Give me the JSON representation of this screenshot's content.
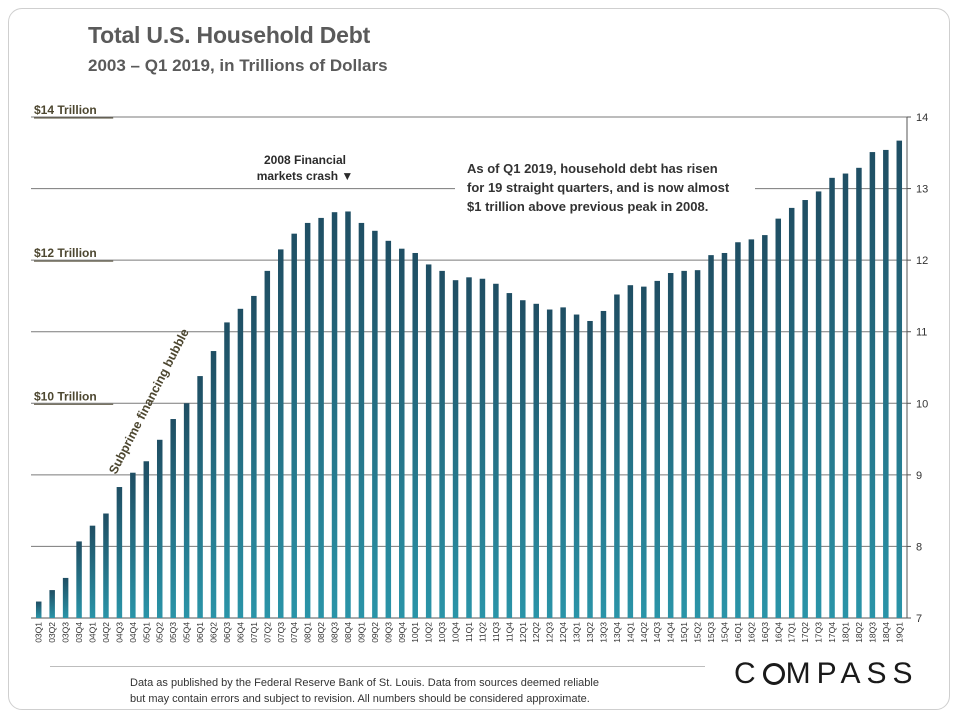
{
  "title": "Total U.S. Household Debt",
  "subtitle": "2003 – Q1 2019, in Trillions of Dollars",
  "footer": {
    "line1": "Data as published by the Federal Reserve Bank of St. Louis. Data from sources deemed reliable",
    "line2": "but may contain errors and subject to revision. All numbers should be considered approximate."
  },
  "logo": {
    "part1": "C",
    "part2": "MPASS"
  },
  "colors": {
    "bar_top": "#1f4e63",
    "bar_bottom": "#2a94a8",
    "gridline": "#7a7a7a",
    "label_text": "#4d4730"
  },
  "annotations": {
    "crash_line1": "2008 Financial",
    "crash_line2": "markets crash ▼",
    "callout_line1": "As of Q1 2019, household debt has risen",
    "callout_line2": "for 19 straight quarters, and is now almost",
    "callout_line3": "$1 trillion above previous peak in 2008.",
    "bubble": "Subprime financing bubble"
  },
  "chart_data": {
    "type": "bar",
    "ylim": [
      7,
      14
    ],
    "y_ticks": [
      7,
      8,
      9,
      10,
      11,
      12,
      13,
      14
    ],
    "y_axis_side": "right",
    "left_labels": [
      {
        "value": 14,
        "text": "$14 Trillion"
      },
      {
        "value": 12,
        "text": "$12 Trillion"
      },
      {
        "value": 10,
        "text": "$10 Trillion"
      }
    ],
    "gridlines": [
      13,
      11,
      9,
      8
    ],
    "categories": [
      "03Q1",
      "03Q2",
      "03Q3",
      "03Q4",
      "04Q1",
      "04Q2",
      "04Q3",
      "04Q4",
      "05Q1",
      "05Q2",
      "05Q3",
      "05Q4",
      "06Q1",
      "06Q2",
      "06Q3",
      "06Q4",
      "07Q1",
      "07Q2",
      "07Q3",
      "07Q4",
      "08Q1",
      "08Q2",
      "08Q3",
      "08Q4",
      "09Q1",
      "09Q2",
      "09Q3",
      "09Q4",
      "10Q1",
      "10Q2",
      "10Q3",
      "10Q4",
      "11Q1",
      "11Q2",
      "11Q3",
      "11Q4",
      "12Q1",
      "12Q2",
      "12Q3",
      "12Q4",
      "13Q1",
      "13Q2",
      "13Q3",
      "13Q4",
      "14Q1",
      "14Q2",
      "14Q3",
      "14Q4",
      "15Q1",
      "15Q2",
      "15Q3",
      "15Q4",
      "16Q1",
      "16Q2",
      "16Q3",
      "16Q4",
      "17Q1",
      "17Q2",
      "17Q3",
      "17Q4",
      "18Q1",
      "18Q2",
      "18Q3",
      "18Q4",
      "19Q1"
    ],
    "values": [
      7.23,
      7.39,
      7.56,
      8.07,
      8.29,
      8.46,
      8.83,
      9.03,
      9.19,
      9.49,
      9.78,
      10.0,
      10.38,
      10.73,
      11.13,
      11.32,
      11.5,
      11.85,
      12.15,
      12.37,
      12.52,
      12.59,
      12.67,
      12.68,
      12.52,
      12.41,
      12.27,
      12.16,
      12.1,
      11.94,
      11.85,
      11.72,
      11.76,
      11.74,
      11.67,
      11.54,
      11.44,
      11.39,
      11.31,
      11.34,
      11.24,
      11.15,
      11.29,
      11.52,
      11.65,
      11.63,
      11.71,
      11.82,
      11.85,
      11.86,
      12.07,
      12.1,
      12.25,
      12.29,
      12.35,
      12.58,
      12.73,
      12.84,
      12.96,
      13.15,
      13.21,
      13.29,
      13.51,
      13.54,
      13.67
    ]
  }
}
